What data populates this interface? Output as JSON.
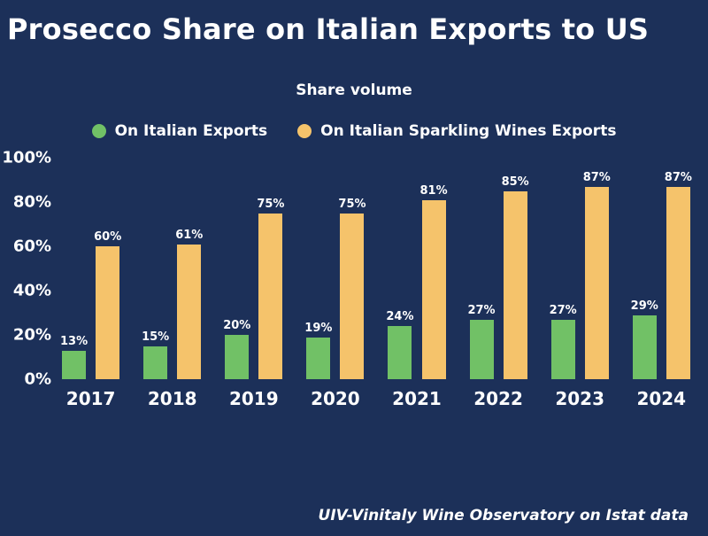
{
  "page": {
    "title": "Prosecco Share on Italian Exports to US",
    "subtitle": "Share volume",
    "footer": "UIV-Vinitaly Wine Observatory on Istat data"
  },
  "colors": {
    "background": "#1c3059",
    "text": "#ffffff",
    "green": "#71c166",
    "orange": "#f5c36b"
  },
  "chart_data": {
    "type": "bar",
    "title": "Share volume",
    "categories": [
      "2017",
      "2018",
      "2019",
      "2020",
      "2021",
      "2022",
      "2023",
      "2024"
    ],
    "series": [
      {
        "name": "On Italian Exports",
        "color": "#71c166",
        "values": [
          13,
          15,
          20,
          19,
          24,
          27,
          27,
          29
        ]
      },
      {
        "name": "On Italian Sparkling Wines Exports",
        "color": "#f5c36b",
        "values": [
          60,
          61,
          75,
          75,
          81,
          85,
          87,
          87
        ]
      }
    ],
    "value_label_suffix": "%",
    "y_ticks": [
      "100%",
      "80%",
      "60%",
      "40%",
      "20%",
      "0%"
    ],
    "ylim": [
      0,
      100
    ],
    "grid": false,
    "legend_position": "top"
  }
}
